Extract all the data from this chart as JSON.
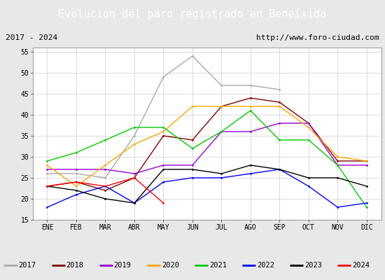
{
  "title": "Evolucion del paro registrado en Beneixida",
  "subtitle_left": "2017 - 2024",
  "subtitle_right": "http://www.foro-ciudad.com",
  "months": [
    "ENE",
    "FEB",
    "MAR",
    "ABR",
    "MAY",
    "JUN",
    "JUL",
    "AGO",
    "SEP",
    "OCT",
    "NOV",
    "DIC"
  ],
  "ylim": [
    15,
    56
  ],
  "yticks": [
    15,
    20,
    25,
    30,
    35,
    40,
    45,
    50,
    55
  ],
  "series": {
    "2017": {
      "color": "#aaaaaa",
      "data": [
        26,
        26,
        25,
        35,
        49,
        54,
        47,
        47,
        46,
        null,
        null,
        null
      ]
    },
    "2018": {
      "color": "#800000",
      "data": [
        23,
        24,
        22,
        25,
        35,
        34,
        42,
        44,
        43,
        38,
        29,
        29
      ]
    },
    "2019": {
      "color": "#9400d3",
      "data": [
        27,
        27,
        27,
        26,
        28,
        28,
        36,
        36,
        38,
        38,
        28,
        28
      ]
    },
    "2020": {
      "color": "#ffa500",
      "data": [
        28,
        23,
        28,
        33,
        36,
        42,
        42,
        42,
        42,
        37,
        30,
        29
      ]
    },
    "2021": {
      "color": "#00cc00",
      "data": [
        29,
        31,
        34,
        37,
        37,
        32,
        36,
        41,
        34,
        34,
        28,
        18
      ]
    },
    "2022": {
      "color": "#0000ff",
      "data": [
        18,
        21,
        23,
        19,
        24,
        25,
        25,
        26,
        27,
        23,
        18,
        19
      ]
    },
    "2023": {
      "color": "#000000",
      "data": [
        23,
        22,
        20,
        19,
        27,
        27,
        26,
        28,
        27,
        25,
        25,
        23
      ]
    },
    "2024": {
      "color": "#ff0000",
      "data": [
        23,
        24,
        23,
        25,
        19,
        null,
        null,
        null,
        null,
        null,
        null,
        null
      ]
    }
  },
  "legend_order": [
    "2017",
    "2018",
    "2019",
    "2020",
    "2021",
    "2022",
    "2023",
    "2024"
  ],
  "background_color": "#e8e8e8",
  "plot_background": "#ffffff",
  "title_bg": "#4a8fc0",
  "title_color": "#ffffff",
  "subtitle_bg": "#ffffff",
  "subtitle_color": "#000000",
  "grid_color": "#cccccc",
  "legend_bg": "#ffffff",
  "border_color": "#4a8fc0"
}
